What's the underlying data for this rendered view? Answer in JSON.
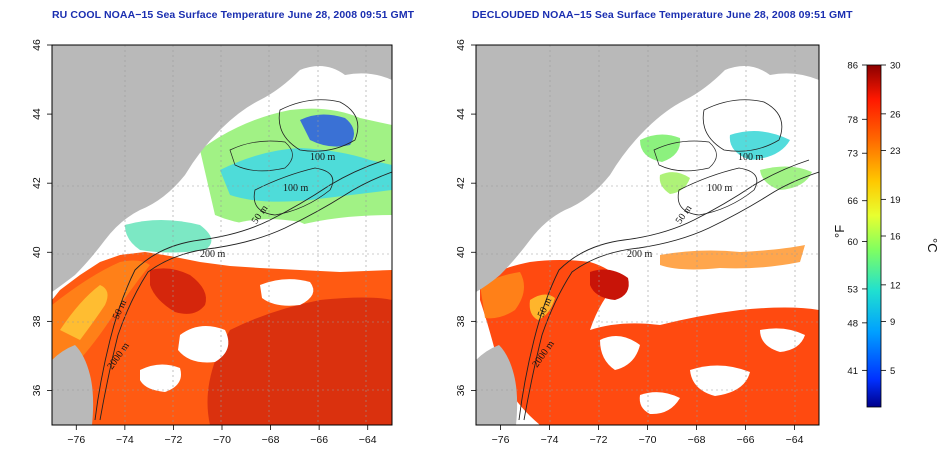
{
  "panels": [
    {
      "title": "RU COOL NOAA−15 Sea Surface Temperature June 28, 2008 09:51 GMT",
      "variant": "cloudy",
      "contour_labels": [
        "100 m",
        "100 m",
        "50 m",
        "200 m",
        "50 m",
        "2000 m"
      ]
    },
    {
      "title": "DECLOUDED NOAA−15 Sea Surface Temperature June 28, 2008 09:51 GMT",
      "variant": "declouded",
      "contour_labels": [
        "100 m",
        "100 m",
        "50 m",
        "200 m",
        "50 m",
        "2000 m"
      ]
    }
  ],
  "axes": {
    "x_ticks": [
      "−76",
      "−74",
      "−72",
      "−70",
      "−68",
      "−66",
      "−64"
    ],
    "y_ticks": [
      "46",
      "44",
      "42",
      "40",
      "38",
      "36"
    ],
    "x_range": [
      -77,
      -63
    ],
    "y_range": [
      35,
      46
    ]
  },
  "colorbar": {
    "fahrenheit_label": "°F",
    "celsius_label": "°C",
    "fahrenheit_ticks": [
      "86",
      "78",
      "73",
      "66",
      "60",
      "53",
      "48",
      "41"
    ],
    "celsius_ticks": [
      "30",
      "26",
      "23",
      "19",
      "16",
      "12",
      "9",
      "5"
    ],
    "celsius_range": [
      2,
      30
    ],
    "colors": [
      "#00008b",
      "#0040ff",
      "#00a0ff",
      "#20e0e0",
      "#80ff80",
      "#e0ff40",
      "#ffd000",
      "#ff7000",
      "#ff2000",
      "#8b0000"
    ]
  },
  "colors": {
    "land": "#b9b9b9",
    "cloud": "#ffffff",
    "warm": "#ff4a10",
    "hot": "#c41208",
    "contour": "#222222",
    "grid": "#9a9a9a",
    "title": "#1a2eb0"
  }
}
